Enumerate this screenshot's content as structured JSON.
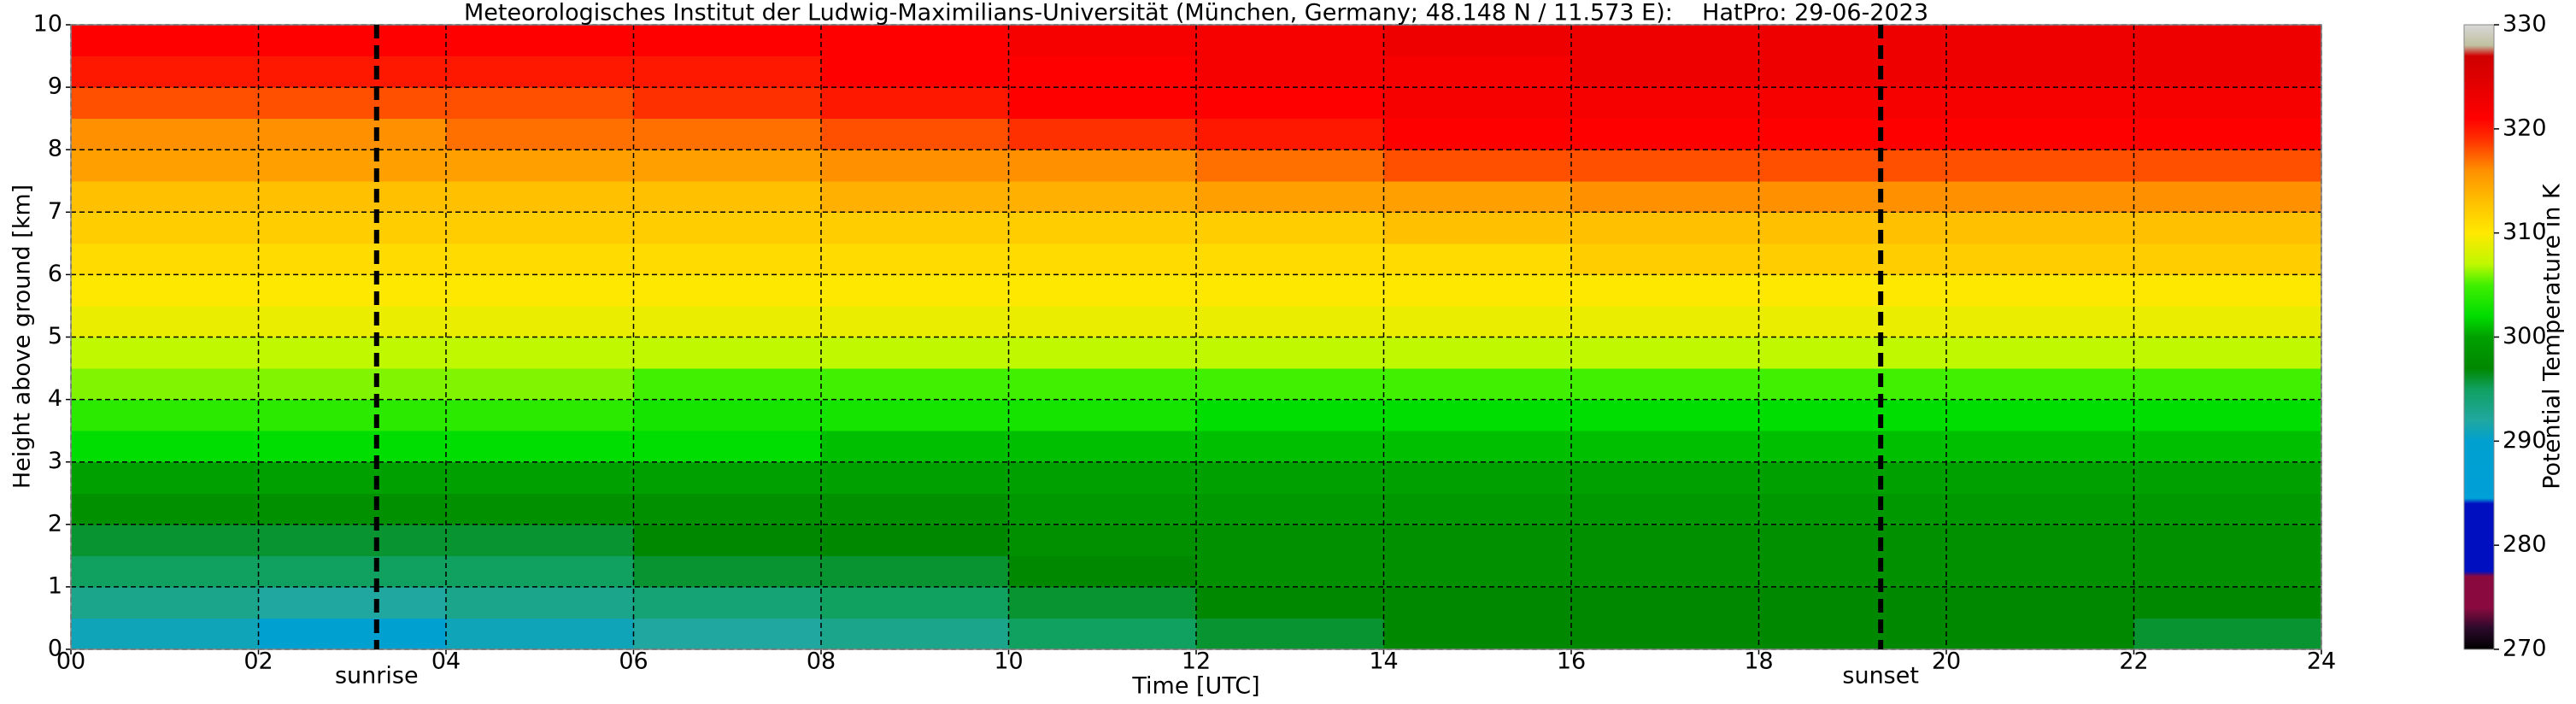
{
  "chart_data": {
    "type": "heatmap",
    "title": "Meteorologisches Institut der Ludwig-Maximilians-Universität (München, Germany; 48.148 N / 11.573 E):    HatPro: 29-06-2023",
    "x_label": "Time [UTC]",
    "y_label": "Height above ground [km]",
    "colorbar_label": "Potential Temperature in K",
    "xlim": [
      0,
      24
    ],
    "ylim": [
      0,
      10
    ],
    "clim": [
      270,
      330
    ],
    "xticks": [
      {
        "value": 0,
        "label": "00"
      },
      {
        "value": 2,
        "label": "02"
      },
      {
        "value": 4,
        "label": "04"
      },
      {
        "value": 6,
        "label": "06"
      },
      {
        "value": 8,
        "label": "08"
      },
      10,
      12,
      14,
      16,
      18,
      20,
      22,
      24
    ],
    "yticks": [
      0,
      1,
      2,
      3,
      4,
      5,
      6,
      7,
      8,
      9,
      10
    ],
    "cticks": [
      270,
      280,
      290,
      300,
      310,
      320,
      330
    ],
    "grid": true,
    "xbins": [
      0,
      2,
      4,
      6,
      8,
      10,
      12,
      14,
      16,
      18,
      20,
      22,
      24
    ],
    "ybins": [
      0,
      0.5,
      1,
      1.5,
      2,
      2.5,
      3,
      3.5,
      4,
      4.5,
      5,
      5.5,
      6,
      6.5,
      7,
      7.5,
      8,
      8.5,
      9,
      9.5,
      10
    ],
    "z": [
      [
        291,
        290,
        291,
        292,
        293,
        295,
        296,
        297,
        297,
        297,
        297,
        296
      ],
      [
        293,
        292,
        293,
        294,
        295,
        296,
        297,
        297,
        297,
        297,
        297,
        297
      ],
      [
        295,
        295,
        295,
        296,
        296,
        297,
        298,
        298,
        298,
        298,
        298,
        298
      ],
      [
        296,
        296,
        296,
        297,
        297,
        298,
        298,
        298,
        298,
        298,
        298,
        298
      ],
      [
        298,
        298,
        298,
        298,
        298,
        299,
        299,
        299,
        299,
        299,
        299,
        299
      ],
      [
        300,
        300,
        300,
        300,
        300,
        300,
        300,
        300,
        300,
        300,
        300,
        300
      ],
      [
        302,
        302,
        302,
        302,
        301,
        301,
        301,
        301,
        301,
        301,
        301,
        301
      ],
      [
        304,
        304,
        304,
        303,
        303,
        303,
        302,
        302,
        302,
        302,
        302,
        302
      ],
      [
        306,
        306,
        306,
        305,
        305,
        305,
        305,
        305,
        305,
        305,
        305,
        305
      ],
      [
        307,
        307,
        307,
        307,
        307,
        307,
        307,
        307,
        307,
        307,
        307,
        307
      ],
      [
        309,
        309,
        309,
        309,
        309,
        309,
        309,
        309,
        309,
        309,
        309,
        309
      ],
      [
        310,
        310,
        310,
        310,
        310,
        310,
        310,
        310,
        310,
        310,
        310,
        310
      ],
      [
        311,
        311,
        311,
        311,
        311,
        311,
        311,
        311,
        312,
        312,
        312,
        312
      ],
      [
        312,
        312,
        312,
        312,
        312,
        312,
        312,
        313,
        313,
        313,
        313,
        313
      ],
      [
        313,
        313,
        313,
        313,
        314,
        314,
        315,
        315,
        316,
        316,
        316,
        316
      ],
      [
        315,
        315,
        315,
        315,
        316,
        316,
        317,
        318,
        318,
        318,
        318,
        318
      ],
      [
        316,
        316,
        317,
        317,
        318,
        319,
        320,
        321,
        321,
        321,
        321,
        321
      ],
      [
        318,
        318,
        318,
        319,
        320,
        321,
        321,
        322,
        322,
        322,
        322,
        322
      ],
      [
        320,
        320,
        320,
        320,
        321,
        321,
        322,
        322,
        323,
        323,
        323,
        323
      ],
      [
        321,
        321,
        321,
        321,
        321,
        322,
        322,
        323,
        323,
        323,
        323,
        323
      ]
    ],
    "cmap": [
      [
        270,
        "#000000"
      ],
      [
        272,
        "#2a0a2a"
      ],
      [
        274,
        "#8a0a40"
      ],
      [
        277,
        "#8a0a40"
      ],
      [
        277.5,
        "#0010c0"
      ],
      [
        284,
        "#0010c0"
      ],
      [
        284.5,
        "#00a0d8"
      ],
      [
        290,
        "#00a0d0"
      ],
      [
        292,
        "#20a8a0"
      ],
      [
        295,
        "#10a060"
      ],
      [
        297,
        "#008800"
      ],
      [
        300,
        "#00a000"
      ],
      [
        302,
        "#00dd00"
      ],
      [
        305,
        "#40f000"
      ],
      [
        307,
        "#c0f800"
      ],
      [
        310,
        "#ffe800"
      ],
      [
        313,
        "#ffc000"
      ],
      [
        316,
        "#ff9000"
      ],
      [
        319,
        "#ff3000"
      ],
      [
        321,
        "#ff0000"
      ],
      [
        325,
        "#dd0000"
      ],
      [
        327,
        "#d00000"
      ],
      [
        328,
        "#c0c0a0"
      ],
      [
        330,
        "#d8d8d8"
      ]
    ],
    "events": [
      {
        "x": 3.26,
        "label": "sunrise"
      },
      {
        "x": 19.3,
        "label": "sunset"
      }
    ]
  }
}
